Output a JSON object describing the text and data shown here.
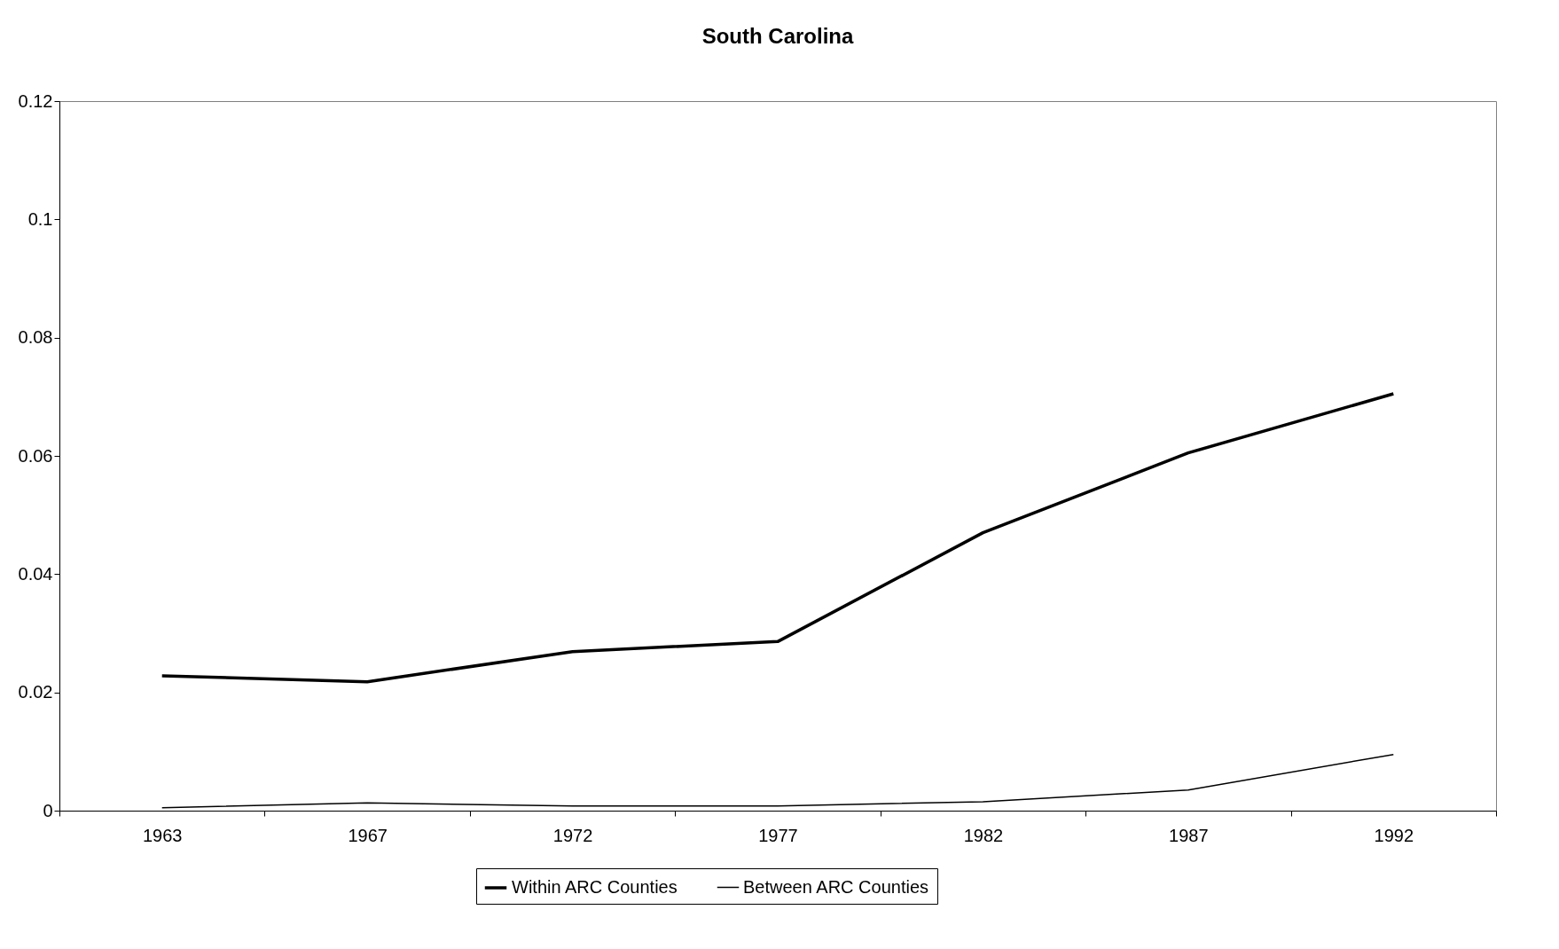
{
  "chart_data": {
    "type": "line",
    "title": "South Carolina",
    "categories": [
      "1963",
      "1967",
      "1972",
      "1977",
      "1982",
      "1987",
      "1992"
    ],
    "series": [
      {
        "name": "Within ARC Counties",
        "color": "#000000",
        "values": [
          0.0228,
          0.0218,
          0.0269,
          0.0286,
          0.047,
          0.0605,
          0.0705
        ]
      },
      {
        "name": "Between ARC Counties",
        "color": "#000000",
        "values": [
          0.0005,
          0.0013,
          0.0008,
          0.0008,
          0.0015,
          0.0035,
          0.0095
        ]
      }
    ],
    "ylim": [
      0,
      0.12
    ],
    "yticks": [
      0,
      0.02,
      0.04,
      0.06,
      0.08,
      {
        "value": 0.1,
        "label": "0.1"
      },
      0.12
    ],
    "grid": false,
    "legend": "bottom",
    "marker": "none",
    "line_style": "solid"
  }
}
